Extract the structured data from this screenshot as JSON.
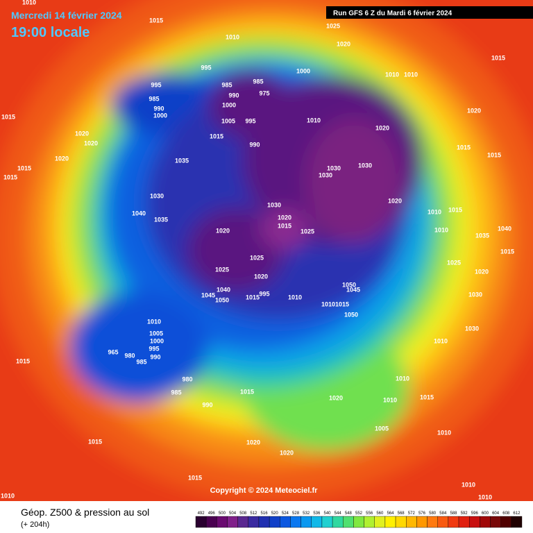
{
  "header": {
    "date": "Mercredi 14 février 2024",
    "time": "19:00 locale",
    "run": "Run GFS 6 Z du Mardi 6 février 2024"
  },
  "footer": {
    "title": "Géop. Z500 & pression au sol",
    "subtitle": "(+ 204h)",
    "copyright": "Copyright © 2024 Meteociel.fr"
  },
  "legend": {
    "labels": [
      "492",
      "496",
      "500",
      "504",
      "508",
      "512",
      "516",
      "520",
      "524",
      "528",
      "532",
      "536",
      "540",
      "544",
      "548",
      "552",
      "556",
      "560",
      "564",
      "568",
      "572",
      "576",
      "580",
      "584",
      "588",
      "592",
      "596",
      "600",
      "604",
      "608",
      "612"
    ],
    "colors": [
      "#2a0030",
      "#4a0050",
      "#6a0a70",
      "#80208a",
      "#5a2890",
      "#3a2aa0",
      "#2030b0",
      "#1040c8",
      "#0c58e0",
      "#0a78f0",
      "#0a98f0",
      "#10b8e8",
      "#20d0d0",
      "#30d8a0",
      "#50e070",
      "#80e840",
      "#b0f030",
      "#e0f020",
      "#fff000",
      "#ffd800",
      "#ffb800",
      "#ff9800",
      "#ff7a10",
      "#f85a10",
      "#f03a10",
      "#e02010",
      "#c81010",
      "#a00808",
      "#780808",
      "#500000",
      "#200000"
    ]
  },
  "pressure_labels": [
    "1010",
    "1015",
    "1025",
    "1020",
    "1010",
    "995",
    "1000",
    "985",
    "985",
    "990",
    "975",
    "995",
    "985",
    "990",
    "1000",
    "1000",
    "1005",
    "995",
    "990",
    "1015",
    "1010",
    "1020",
    "1020",
    "1015",
    "1015",
    "1015",
    "1010",
    "1010",
    "1015",
    "1020",
    "1020",
    "1020",
    "1015",
    "1015",
    "1035",
    "1030",
    "1030",
    "1030",
    "1020",
    "1030",
    "1040",
    "1035",
    "1030",
    "1020",
    "1015",
    "1025",
    "1020",
    "1010",
    "1015",
    "1010",
    "1035",
    "1040",
    "1015",
    "1025",
    "1020",
    "1025",
    "1025",
    "1020",
    "1040",
    "1045",
    "1050",
    "1015",
    "995",
    "1010",
    "1050",
    "1045",
    "1010",
    "1015",
    "1050",
    "1030",
    "1030",
    "1010",
    "1010",
    "1005",
    "1000",
    "995",
    "990",
    "985",
    "980",
    "965",
    "980",
    "985",
    "990",
    "1015",
    "1015",
    "1010",
    "1010",
    "1015",
    "1020",
    "1005",
    "1010",
    "1015",
    "1020",
    "1020",
    "1015",
    "1010",
    "1010",
    "1010"
  ]
}
